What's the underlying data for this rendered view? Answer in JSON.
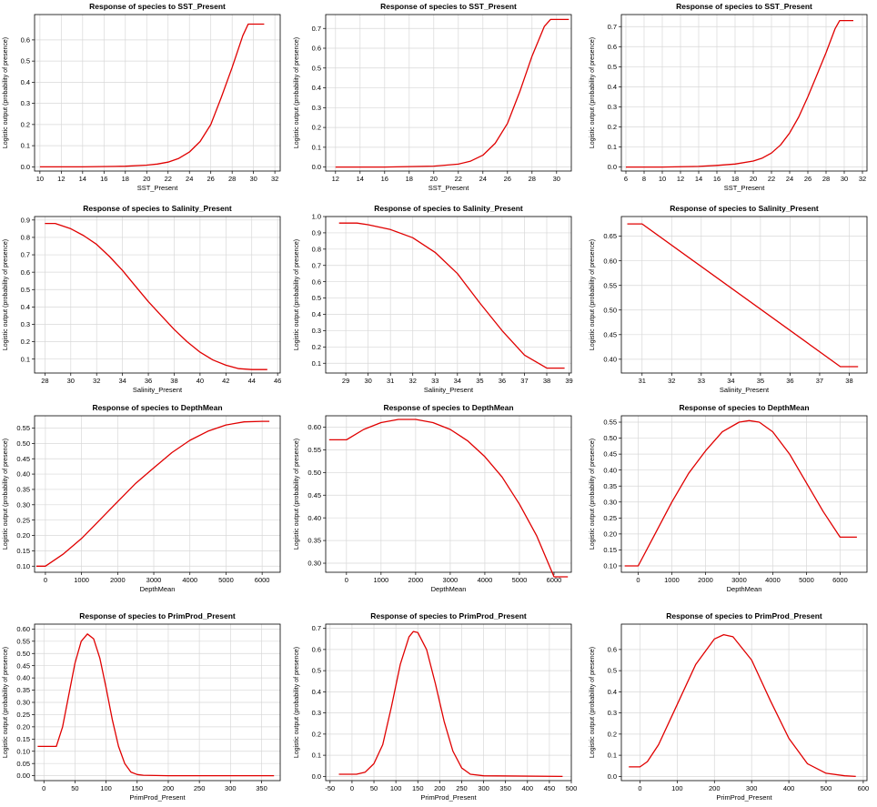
{
  "ylabel": "Logistic output (probability of presence)",
  "line_color": "#e00000",
  "chart_data": [
    {
      "type": "line",
      "title": "Response of species to SST_Present",
      "xlabel": "SST_Present",
      "xlim": [
        9.5,
        32.5
      ],
      "ylim": [
        -0.02,
        0.72
      ],
      "xticks": [
        10,
        12,
        14,
        16,
        18,
        20,
        22,
        24,
        26,
        28,
        30,
        32
      ],
      "yticks": [
        0.0,
        0.1,
        0.2,
        0.3,
        0.4,
        0.5,
        0.6
      ],
      "x": [
        10,
        14,
        18,
        20,
        21,
        22,
        23,
        24,
        25,
        26,
        27,
        28,
        29,
        29.5,
        31
      ],
      "y": [
        0.0,
        0.0,
        0.003,
        0.008,
        0.013,
        0.022,
        0.04,
        0.07,
        0.12,
        0.2,
        0.33,
        0.47,
        0.62,
        0.675,
        0.675
      ]
    },
    {
      "type": "line",
      "title": "Response of species to SST_Present",
      "xlabel": "SST_Present",
      "xlim": [
        11.2,
        31.2
      ],
      "ylim": [
        -0.02,
        0.77
      ],
      "xticks": [
        12,
        14,
        16,
        18,
        20,
        22,
        24,
        26,
        28,
        30
      ],
      "yticks": [
        0.0,
        0.1,
        0.2,
        0.3,
        0.4,
        0.5,
        0.6,
        0.7
      ],
      "x": [
        12,
        16,
        20,
        22,
        23,
        24,
        25,
        26,
        27,
        28,
        29,
        29.5,
        31
      ],
      "y": [
        0.0,
        0.0,
        0.005,
        0.015,
        0.03,
        0.06,
        0.12,
        0.22,
        0.38,
        0.56,
        0.71,
        0.745,
        0.745
      ]
    },
    {
      "type": "line",
      "title": "Response of species to SST_Present",
      "xlabel": "SST_Present",
      "xlim": [
        5.5,
        32.5
      ],
      "ylim": [
        -0.02,
        0.76
      ],
      "xticks": [
        6,
        8,
        10,
        12,
        14,
        16,
        18,
        20,
        22,
        24,
        26,
        28,
        30,
        32
      ],
      "yticks": [
        0.0,
        0.1,
        0.2,
        0.3,
        0.4,
        0.5,
        0.6,
        0.7
      ],
      "x": [
        6,
        10,
        14,
        16,
        18,
        20,
        21,
        22,
        23,
        24,
        25,
        26,
        27,
        28,
        29,
        29.5,
        31
      ],
      "y": [
        0.0,
        0.0,
        0.003,
        0.008,
        0.015,
        0.03,
        0.045,
        0.07,
        0.11,
        0.17,
        0.25,
        0.35,
        0.46,
        0.57,
        0.69,
        0.73,
        0.73
      ]
    },
    {
      "type": "line",
      "title": "Response of species to Salinity_Present",
      "xlabel": "Salinity_Present",
      "xlim": [
        27.2,
        46.2
      ],
      "ylim": [
        0.02,
        0.92
      ],
      "xticks": [
        28,
        30,
        32,
        34,
        36,
        38,
        40,
        42,
        44,
        46
      ],
      "yticks": [
        0.1,
        0.2,
        0.3,
        0.4,
        0.5,
        0.6,
        0.7,
        0.8,
        0.9
      ],
      "x": [
        28,
        28.8,
        30,
        31,
        32,
        33,
        34,
        35,
        36,
        37,
        38,
        39,
        40,
        41,
        42,
        43,
        44,
        45.2
      ],
      "y": [
        0.88,
        0.88,
        0.85,
        0.81,
        0.76,
        0.69,
        0.61,
        0.52,
        0.43,
        0.35,
        0.27,
        0.2,
        0.14,
        0.095,
        0.065,
        0.045,
        0.04,
        0.04
      ]
    },
    {
      "type": "line",
      "title": "Response of species to Salinity_Present",
      "xlabel": "Salinity_Present",
      "xlim": [
        28.1,
        39.1
      ],
      "ylim": [
        0.04,
        1.0
      ],
      "xticks": [
        28,
        29,
        30,
        31,
        32,
        33,
        34,
        35,
        36,
        37,
        38,
        39
      ],
      "yticks": [
        0.1,
        0.2,
        0.3,
        0.4,
        0.5,
        0.6,
        0.7,
        0.8,
        0.9,
        1.0
      ],
      "x": [
        28.7,
        29.5,
        30,
        31,
        32,
        33,
        34,
        35,
        36,
        37,
        38,
        38.8
      ],
      "y": [
        0.96,
        0.96,
        0.95,
        0.92,
        0.87,
        0.78,
        0.65,
        0.47,
        0.3,
        0.15,
        0.07,
        0.07
      ]
    },
    {
      "type": "line",
      "title": "Response of species to Salinity_Present",
      "xlabel": "Salinity_Present",
      "xlim": [
        30.3,
        38.6
      ],
      "ylim": [
        0.372,
        0.69
      ],
      "xticks": [
        31,
        32,
        33,
        34,
        35,
        36,
        37,
        38
      ],
      "yticks": [
        0.4,
        0.45,
        0.5,
        0.55,
        0.6,
        0.65
      ],
      "x": [
        30.5,
        31,
        37.7,
        38.3
      ],
      "y": [
        0.675,
        0.675,
        0.385,
        0.385
      ]
    },
    {
      "type": "line",
      "title": "Response of species to DepthMean",
      "xlabel": "DepthMean",
      "xlim": [
        -300,
        6500
      ],
      "ylim": [
        0.08,
        0.59
      ],
      "xticks": [
        0,
        1000,
        2000,
        3000,
        4000,
        5000,
        6000
      ],
      "yticks": [
        0.1,
        0.15,
        0.2,
        0.25,
        0.3,
        0.35,
        0.4,
        0.45,
        0.5,
        0.55
      ],
      "x": [
        -250,
        0,
        500,
        1000,
        1500,
        2000,
        2500,
        3000,
        3500,
        4000,
        4500,
        5000,
        5500,
        6000,
        6200
      ],
      "y": [
        0.1,
        0.1,
        0.14,
        0.19,
        0.25,
        0.31,
        0.37,
        0.42,
        0.47,
        0.51,
        0.54,
        0.56,
        0.57,
        0.572,
        0.572
      ]
    },
    {
      "type": "line",
      "title": "Response of species to DepthMean",
      "xlabel": "DepthMean",
      "xlim": [
        -600,
        6500
      ],
      "ylim": [
        0.28,
        0.625
      ],
      "xticks": [
        0,
        1000,
        2000,
        3000,
        4000,
        5000,
        6000
      ],
      "yticks": [
        0.3,
        0.35,
        0.4,
        0.45,
        0.5,
        0.55,
        0.6
      ],
      "x": [
        -500,
        0,
        500,
        1000,
        1500,
        2000,
        2500,
        3000,
        3500,
        4000,
        4500,
        5000,
        5500,
        6000,
        6400
      ],
      "y": [
        0.572,
        0.572,
        0.595,
        0.61,
        0.617,
        0.617,
        0.61,
        0.595,
        0.57,
        0.535,
        0.49,
        0.43,
        0.36,
        0.27,
        0.27
      ]
    },
    {
      "type": "line",
      "title": "Response of species to DepthMean",
      "xlabel": "DepthMean",
      "xlim": [
        -500,
        6800
      ],
      "ylim": [
        0.08,
        0.57
      ],
      "xticks": [
        0,
        1000,
        2000,
        3000,
        4000,
        5000,
        6000
      ],
      "yticks": [
        0.1,
        0.15,
        0.2,
        0.25,
        0.3,
        0.35,
        0.4,
        0.45,
        0.5,
        0.55
      ],
      "x": [
        -400,
        0,
        500,
        1000,
        1500,
        2000,
        2500,
        3000,
        3300,
        3600,
        4000,
        4500,
        5000,
        5500,
        6000,
        6500
      ],
      "y": [
        0.1,
        0.1,
        0.2,
        0.3,
        0.39,
        0.46,
        0.52,
        0.55,
        0.555,
        0.55,
        0.52,
        0.45,
        0.36,
        0.27,
        0.19,
        0.19
      ]
    },
    {
      "type": "line",
      "title": "Response of species to PrimProd_Present",
      "xlabel": "PrimProd_Present",
      "xlim": [
        -15,
        380
      ],
      "ylim": [
        -0.02,
        0.62
      ],
      "xticks": [
        0,
        50,
        100,
        150,
        200,
        250,
        300,
        350
      ],
      "yticks": [
        0.0,
        0.05,
        0.1,
        0.15,
        0.2,
        0.25,
        0.3,
        0.35,
        0.4,
        0.45,
        0.5,
        0.55,
        0.6
      ],
      "x": [
        -10,
        20,
        30,
        40,
        50,
        60,
        70,
        80,
        90,
        100,
        110,
        120,
        130,
        140,
        150,
        160,
        200,
        370
      ],
      "y": [
        0.12,
        0.12,
        0.2,
        0.33,
        0.46,
        0.55,
        0.58,
        0.56,
        0.48,
        0.36,
        0.23,
        0.12,
        0.05,
        0.015,
        0.005,
        0.002,
        0.0,
        0.0
      ]
    },
    {
      "type": "line",
      "title": "Response of species to PrimProd_Present",
      "xlabel": "PrimProd_Present",
      "xlim": [
        -60,
        500
      ],
      "ylim": [
        -0.02,
        0.72
      ],
      "xticks": [
        -50,
        0,
        50,
        100,
        150,
        200,
        250,
        300,
        350,
        400,
        450,
        500
      ],
      "yticks": [
        0.0,
        0.1,
        0.2,
        0.3,
        0.4,
        0.5,
        0.6,
        0.7
      ],
      "x": [
        -30,
        10,
        30,
        50,
        70,
        90,
        110,
        130,
        140,
        150,
        170,
        190,
        210,
        230,
        250,
        270,
        300,
        480
      ],
      "y": [
        0.01,
        0.01,
        0.02,
        0.06,
        0.15,
        0.33,
        0.53,
        0.66,
        0.685,
        0.68,
        0.6,
        0.44,
        0.26,
        0.12,
        0.04,
        0.01,
        0.003,
        0.0
      ]
    },
    {
      "type": "line",
      "title": "Response of species to PrimProd_Present",
      "xlabel": "PrimProd_Present",
      "xlim": [
        -50,
        610
      ],
      "ylim": [
        -0.02,
        0.72
      ],
      "xticks": [
        0,
        100,
        200,
        300,
        400,
        500,
        600
      ],
      "yticks": [
        0.0,
        0.1,
        0.2,
        0.3,
        0.4,
        0.5,
        0.6
      ],
      "x": [
        -30,
        0,
        20,
        50,
        100,
        150,
        200,
        225,
        250,
        300,
        350,
        400,
        450,
        500,
        550,
        580
      ],
      "y": [
        0.045,
        0.045,
        0.07,
        0.15,
        0.34,
        0.53,
        0.65,
        0.67,
        0.66,
        0.55,
        0.36,
        0.18,
        0.06,
        0.015,
        0.003,
        0.0
      ]
    }
  ]
}
